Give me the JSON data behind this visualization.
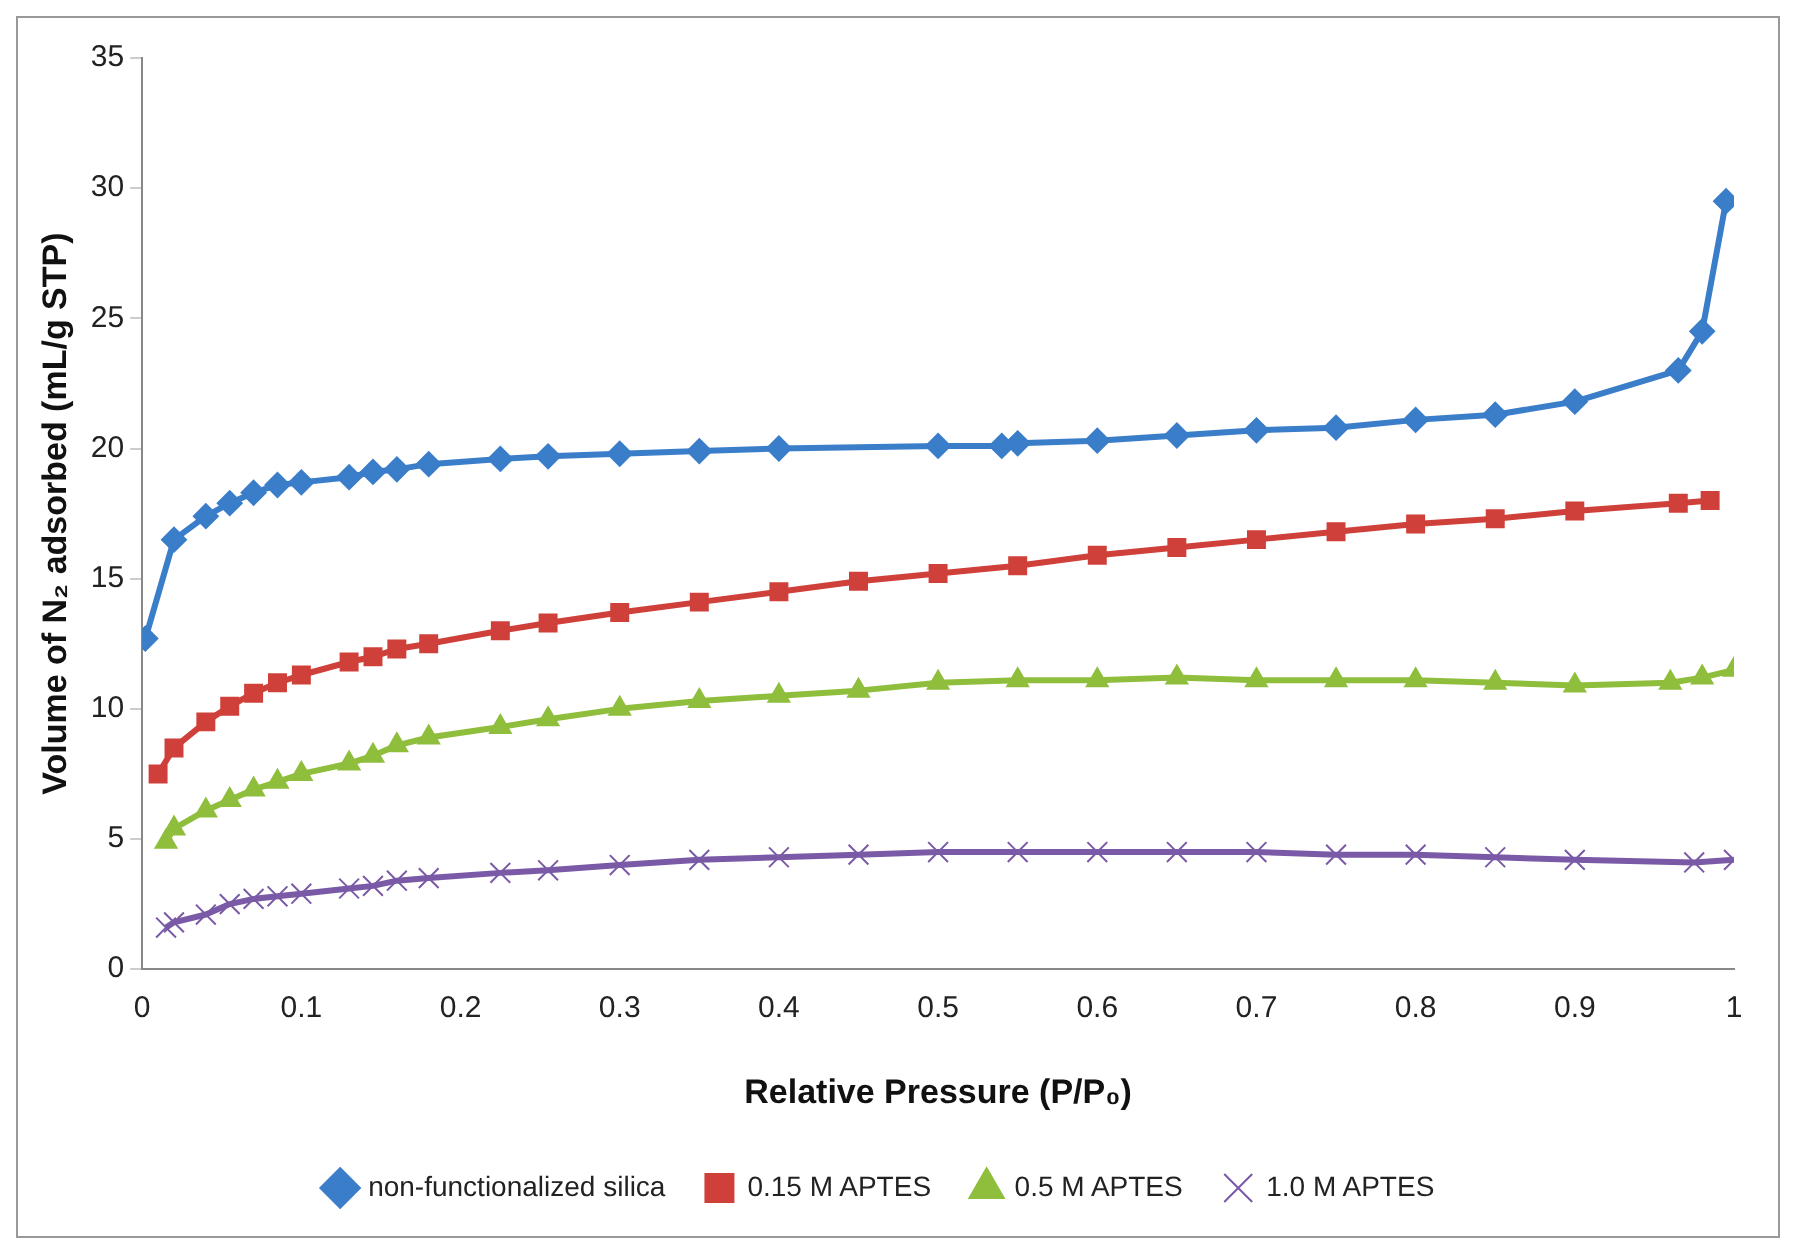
{
  "chart_data": {
    "type": "line",
    "xlabel": "Relative Pressure (P/P₀)",
    "ylabel": "Volume of N₂ adsorbed (mL/g STP)",
    "xlim": [
      0,
      1
    ],
    "xticks": [
      0,
      0.1,
      0.2,
      0.3,
      0.4,
      0.5,
      0.6,
      0.7,
      0.8,
      0.9,
      1
    ],
    "ylim": [
      0,
      35
    ],
    "yticks": [
      0,
      5,
      10,
      15,
      20,
      25,
      30,
      35
    ],
    "grid": false,
    "legend": "bottom",
    "line_style": "solid",
    "series": [
      {
        "name": "non-functionalized silica",
        "color": "#3a7dc9",
        "marker": "diamond",
        "x": [
          0.002,
          0.02,
          0.04,
          0.055,
          0.07,
          0.085,
          0.1,
          0.13,
          0.145,
          0.16,
          0.18,
          0.225,
          0.255,
          0.3,
          0.35,
          0.4,
          0.5,
          0.54,
          0.55,
          0.6,
          0.65,
          0.7,
          0.75,
          0.8,
          0.85,
          0.9,
          0.965,
          0.98,
          0.995
        ],
        "values": [
          12.7,
          16.5,
          17.4,
          17.9,
          18.3,
          18.6,
          18.7,
          18.9,
          19.1,
          19.2,
          19.4,
          19.6,
          19.7,
          19.8,
          19.9,
          20.0,
          20.1,
          20.1,
          20.2,
          20.3,
          20.5,
          20.7,
          20.8,
          21.1,
          21.3,
          21.8,
          23.0,
          24.5,
          29.5
        ]
      },
      {
        "name": "0.15 M APTES",
        "color": "#d0403a",
        "marker": "square",
        "x": [
          0.01,
          0.02,
          0.04,
          0.055,
          0.07,
          0.085,
          0.1,
          0.13,
          0.145,
          0.16,
          0.18,
          0.225,
          0.255,
          0.3,
          0.35,
          0.4,
          0.45,
          0.5,
          0.55,
          0.6,
          0.65,
          0.7,
          0.75,
          0.8,
          0.85,
          0.9,
          0.965,
          0.985
        ],
        "values": [
          7.5,
          8.5,
          9.5,
          10.1,
          10.6,
          11.0,
          11.3,
          11.8,
          12.0,
          12.3,
          12.5,
          13.0,
          13.3,
          13.7,
          14.1,
          14.5,
          14.9,
          15.2,
          15.5,
          15.9,
          16.2,
          16.5,
          16.8,
          17.1,
          17.3,
          17.6,
          17.9,
          18.0
        ]
      },
      {
        "name": "0.5 M APTES",
        "color": "#8fbe3c",
        "marker": "triangle",
        "x": [
          0.015,
          0.02,
          0.04,
          0.055,
          0.07,
          0.085,
          0.1,
          0.13,
          0.145,
          0.16,
          0.18,
          0.225,
          0.255,
          0.3,
          0.35,
          0.4,
          0.45,
          0.5,
          0.55,
          0.6,
          0.65,
          0.7,
          0.75,
          0.8,
          0.85,
          0.9,
          0.96,
          0.98,
          1.0
        ],
        "values": [
          4.9,
          5.4,
          6.1,
          6.5,
          6.9,
          7.2,
          7.5,
          7.9,
          8.2,
          8.6,
          8.9,
          9.3,
          9.6,
          10.0,
          10.3,
          10.5,
          10.7,
          11.0,
          11.1,
          11.1,
          11.2,
          11.1,
          11.1,
          11.1,
          11.0,
          10.9,
          11.0,
          11.2,
          11.5
        ]
      },
      {
        "name": "1.0 M APTES",
        "color": "#7a5aa6",
        "marker": "cross",
        "x": [
          0.015,
          0.02,
          0.04,
          0.055,
          0.07,
          0.085,
          0.1,
          0.13,
          0.145,
          0.16,
          0.18,
          0.225,
          0.255,
          0.3,
          0.35,
          0.4,
          0.45,
          0.5,
          0.55,
          0.6,
          0.65,
          0.7,
          0.75,
          0.8,
          0.85,
          0.9,
          0.975,
          1.0
        ],
        "values": [
          1.6,
          1.8,
          2.1,
          2.5,
          2.7,
          2.8,
          2.9,
          3.1,
          3.2,
          3.4,
          3.5,
          3.7,
          3.8,
          4.0,
          4.2,
          4.3,
          4.4,
          4.5,
          4.5,
          4.5,
          4.5,
          4.5,
          4.4,
          4.4,
          4.3,
          4.2,
          4.1,
          4.2
        ]
      }
    ]
  }
}
